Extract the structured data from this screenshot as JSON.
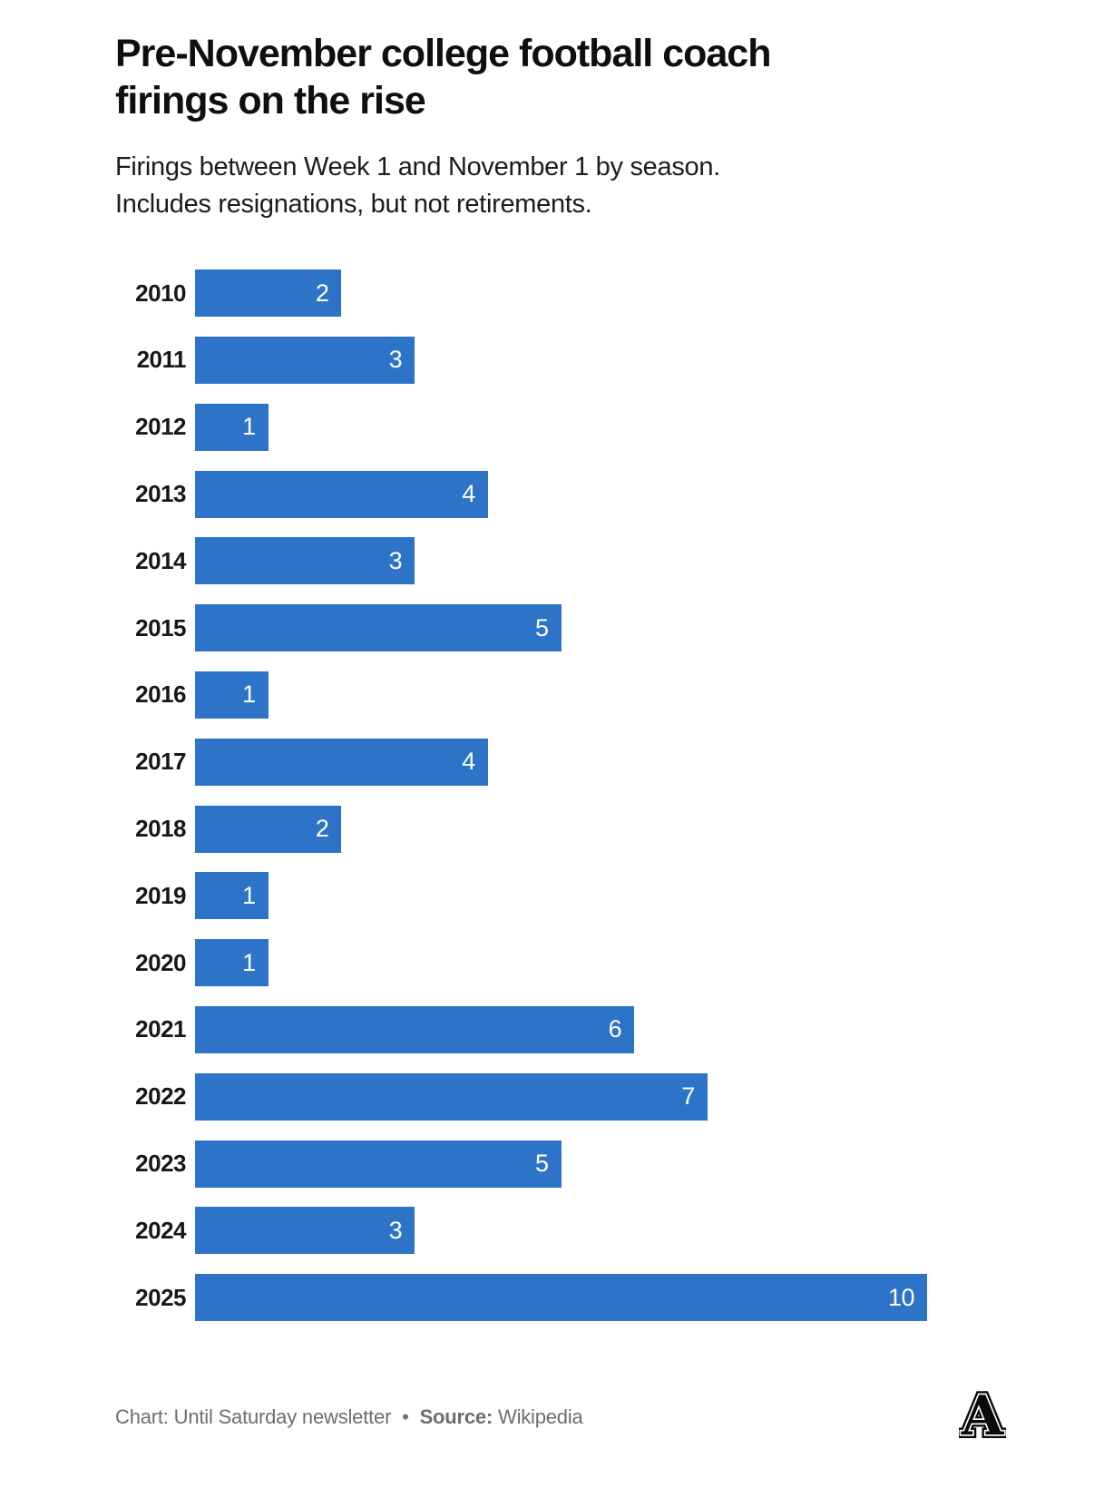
{
  "header": {
    "title": "Pre-November college football coach\nfirings on the rise",
    "subtitle": "Firings between Week 1 and November 1 by season.\nIncludes resignations, but not retirements."
  },
  "chart_data": {
    "type": "bar",
    "orientation": "horizontal",
    "title": "Pre-November college football coach firings on the rise",
    "subtitle": "Firings between Week 1 and November 1 by season. Includes resignations, but not retirements.",
    "categories": [
      "2010",
      "2011",
      "2012",
      "2013",
      "2014",
      "2015",
      "2016",
      "2017",
      "2018",
      "2019",
      "2020",
      "2021",
      "2022",
      "2023",
      "2024",
      "2025"
    ],
    "values": [
      2,
      3,
      1,
      4,
      3,
      5,
      1,
      4,
      2,
      1,
      1,
      6,
      7,
      5,
      3,
      10
    ],
    "xlabel": "",
    "ylabel": "",
    "xlim": [
      0,
      10
    ],
    "grid": false,
    "legend": false,
    "value_labels": "inside-end",
    "bar_color": "#2d74c8",
    "value_label_color": "#ffffff",
    "category_label_color": "#171717"
  },
  "footer": {
    "chart_credit_label": "Chart:",
    "chart_credit": "Until Saturday newsletter",
    "separator": "•",
    "source_label": "Source:",
    "source": "Wikipedia",
    "logo_name": "the-athletic-a-logo",
    "logo_letter": "A"
  }
}
